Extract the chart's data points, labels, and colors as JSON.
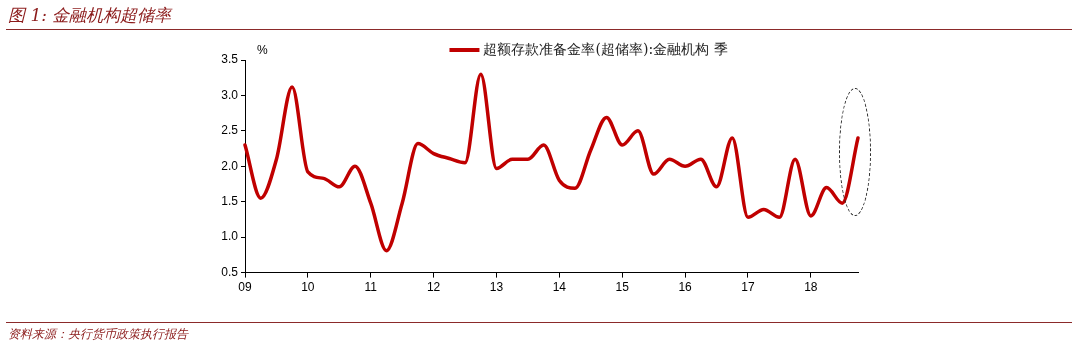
{
  "chart_data": {
    "type": "line",
    "title": "图 1: 金融机构超储率",
    "ylabel": "%",
    "x": [
      9,
      9.25,
      9.5,
      9.75,
      10,
      10.25,
      10.5,
      10.75,
      11,
      11.25,
      11.5,
      11.75,
      12,
      12.25,
      12.5,
      12.75,
      13,
      13.25,
      13.5,
      13.75,
      14,
      14.25,
      14.5,
      14.75,
      15,
      15.25,
      15.5,
      15.75,
      16,
      16.25,
      16.5,
      16.75,
      17,
      17.25,
      17.5,
      17.75,
      18,
      18.25,
      18.5,
      18.75
    ],
    "series": [
      {
        "name": "超额存款准备金率(超储率):金融机构 季",
        "color": "#c00000",
        "values": [
          2.3,
          1.55,
          2.1,
          3.12,
          1.92,
          1.83,
          1.71,
          2.0,
          1.48,
          0.81,
          1.48,
          2.32,
          2.18,
          2.11,
          2.05,
          3.3,
          1.97,
          2.1,
          2.1,
          2.3,
          1.8,
          1.69,
          2.23,
          2.69,
          2.3,
          2.5,
          1.89,
          2.1,
          2.0,
          2.1,
          1.71,
          2.4,
          1.28,
          1.39,
          1.28,
          2.1,
          1.3,
          1.7,
          1.48,
          2.4
        ]
      }
    ],
    "xlim": [
      9,
      18.75
    ],
    "xticks": [
      {
        "value": 9,
        "label": "09"
      },
      10,
      11,
      12,
      13,
      14,
      15,
      16,
      17,
      18
    ],
    "ylim": [
      0.5,
      3.5
    ],
    "yticks": [
      {
        "value": 0.5,
        "label": "0.5"
      },
      {
        "value": 1,
        "label": "1.0"
      },
      {
        "value": 1.5,
        "label": "1.5"
      },
      {
        "value": 2,
        "label": "2.0"
      },
      {
        "value": 2.5,
        "label": "2.5"
      },
      {
        "value": 3,
        "label": "3.0"
      },
      {
        "value": 3.5,
        "label": "3.5"
      }
    ],
    "grid": false,
    "legend": "top",
    "marker": "none",
    "line_style": "solid",
    "annotations": [
      "资料来源：央行货币政策执行报告"
    ]
  }
}
